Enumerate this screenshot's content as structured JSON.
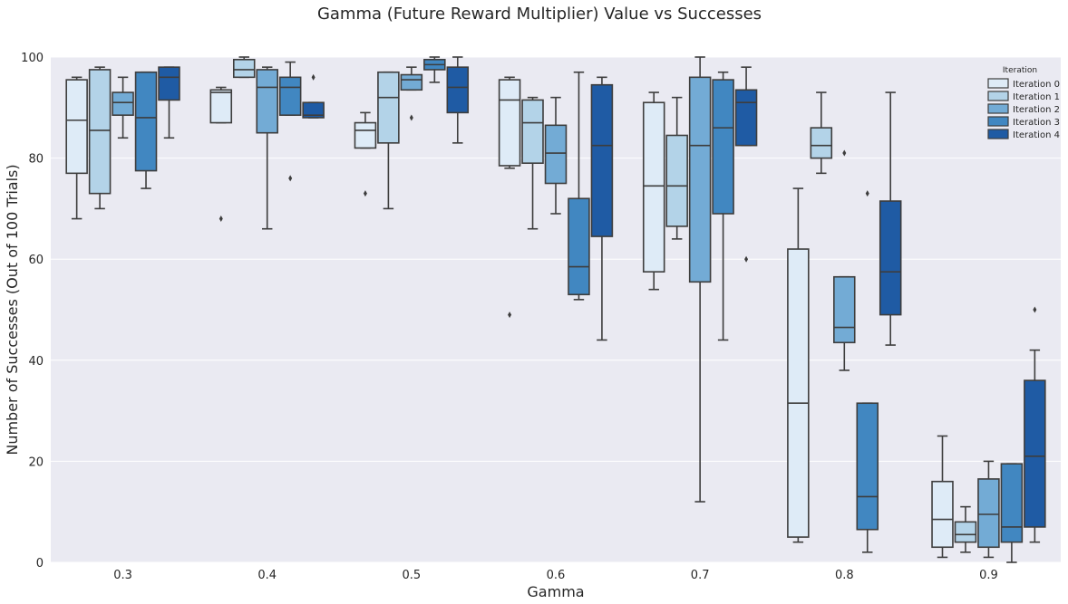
{
  "chart_data": {
    "type": "box",
    "title": "Gamma (Future Reward Multiplier) Value vs Successes",
    "xlabel": "Gamma",
    "ylabel": "Number of Successes (Out of 100 Trials)",
    "ylim": [
      0,
      100
    ],
    "yticks": [
      0,
      20,
      40,
      60,
      80,
      100
    ],
    "categories": [
      "0.3",
      "0.4",
      "0.5",
      "0.6",
      "0.7",
      "0.8",
      "0.9"
    ],
    "legend": {
      "title": "Iteration",
      "position": "top-right",
      "entries": [
        "Iteration 0",
        "Iteration 1",
        "Iteration 2",
        "Iteration 3",
        "Iteration 4"
      ]
    },
    "colors": [
      "#deebf7",
      "#b3d3e8",
      "#73abd5",
      "#4187c1",
      "#1f5ba4"
    ],
    "series": [
      {
        "name": "Iteration 0",
        "boxes": [
          {
            "wlo": 68,
            "q1": 77,
            "med": 87.5,
            "q3": 95.5,
            "whi": 96,
            "fliers": []
          },
          {
            "wlo": 87,
            "q1": 87,
            "med": 93,
            "q3": 93.5,
            "whi": 94,
            "fliers": [
              68
            ]
          },
          {
            "wlo": 82,
            "q1": 82,
            "med": 85.5,
            "q3": 87,
            "whi": 89,
            "fliers": [
              73
            ]
          },
          {
            "wlo": 78,
            "q1": 78.5,
            "med": 91.5,
            "q3": 95.5,
            "whi": 96,
            "fliers": [
              49
            ]
          },
          {
            "wlo": 54,
            "q1": 57.5,
            "med": 74.5,
            "q3": 91,
            "whi": 93,
            "fliers": []
          },
          {
            "wlo": 4,
            "q1": 5,
            "med": 31.5,
            "q3": 62,
            "whi": 74,
            "fliers": []
          },
          {
            "wlo": 1,
            "q1": 3,
            "med": 8.5,
            "q3": 16,
            "whi": 25,
            "fliers": []
          }
        ]
      },
      {
        "name": "Iteration 1",
        "boxes": [
          {
            "wlo": 70,
            "q1": 73,
            "med": 85.5,
            "q3": 97.5,
            "whi": 98,
            "fliers": []
          },
          {
            "wlo": 96,
            "q1": 96,
            "med": 97.5,
            "q3": 99.5,
            "whi": 100,
            "fliers": []
          },
          {
            "wlo": 70,
            "q1": 83,
            "med": 92,
            "q3": 97,
            "whi": 97,
            "fliers": []
          },
          {
            "wlo": 66,
            "q1": 79,
            "med": 87,
            "q3": 91.5,
            "whi": 92,
            "fliers": []
          },
          {
            "wlo": 64,
            "q1": 66.5,
            "med": 74.5,
            "q3": 84.5,
            "whi": 92,
            "fliers": []
          },
          {
            "wlo": 77,
            "q1": 80,
            "med": 82.5,
            "q3": 86,
            "whi": 93,
            "fliers": []
          },
          {
            "wlo": 2,
            "q1": 4,
            "med": 5.5,
            "q3": 8,
            "whi": 11,
            "fliers": []
          }
        ]
      },
      {
        "name": "Iteration 2",
        "boxes": [
          {
            "wlo": 84,
            "q1": 88.5,
            "med": 91,
            "q3": 93,
            "whi": 96,
            "fliers": []
          },
          {
            "wlo": 66,
            "q1": 85,
            "med": 94,
            "q3": 97.5,
            "whi": 98,
            "fliers": []
          },
          {
            "wlo": 93.5,
            "q1": 93.5,
            "med": 95.5,
            "q3": 96.5,
            "whi": 98,
            "fliers": [
              88
            ]
          },
          {
            "wlo": 69,
            "q1": 75,
            "med": 81,
            "q3": 86.5,
            "whi": 92,
            "fliers": []
          },
          {
            "wlo": 12,
            "q1": 55.5,
            "med": 82.5,
            "q3": 96,
            "whi": 100,
            "fliers": []
          },
          {
            "wlo": 38,
            "q1": 43.5,
            "med": 46.5,
            "q3": 56.5,
            "whi": 56.5,
            "fliers": [
              81
            ]
          },
          {
            "wlo": 1,
            "q1": 3,
            "med": 9.5,
            "q3": 16.5,
            "whi": 20,
            "fliers": []
          }
        ]
      },
      {
        "name": "Iteration 3",
        "boxes": [
          {
            "wlo": 74,
            "q1": 77.5,
            "med": 88,
            "q3": 97,
            "whi": 97,
            "fliers": []
          },
          {
            "wlo": 88.5,
            "q1": 88.5,
            "med": 94,
            "q3": 96,
            "whi": 99,
            "fliers": [
              76
            ]
          },
          {
            "wlo": 95,
            "q1": 97.5,
            "med": 98.5,
            "q3": 99.5,
            "whi": 100,
            "fliers": []
          },
          {
            "wlo": 52,
            "q1": 53,
            "med": 58.5,
            "q3": 72,
            "whi": 97,
            "fliers": []
          },
          {
            "wlo": 44,
            "q1": 69,
            "med": 86,
            "q3": 95.5,
            "whi": 97,
            "fliers": []
          },
          {
            "wlo": 2,
            "q1": 6.5,
            "med": 13,
            "q3": 31.5,
            "whi": 31.5,
            "fliers": [
              73
            ]
          },
          {
            "wlo": 0,
            "q1": 4,
            "med": 7,
            "q3": 19.5,
            "whi": 19.5,
            "fliers": []
          }
        ]
      },
      {
        "name": "Iteration 4",
        "boxes": [
          {
            "wlo": 84,
            "q1": 91.5,
            "med": 96,
            "q3": 98,
            "whi": 98,
            "fliers": []
          },
          {
            "wlo": 88,
            "q1": 88,
            "med": 88.5,
            "q3": 91,
            "whi": 91,
            "fliers": [
              96
            ]
          },
          {
            "wlo": 83,
            "q1": 89,
            "med": 94,
            "q3": 98,
            "whi": 100,
            "fliers": []
          },
          {
            "wlo": 44,
            "q1": 64.5,
            "med": 82.5,
            "q3": 94.5,
            "whi": 96,
            "fliers": []
          },
          {
            "wlo": 82.5,
            "q1": 82.5,
            "med": 91,
            "q3": 93.5,
            "whi": 98,
            "fliers": [
              60
            ]
          },
          {
            "wlo": 43,
            "q1": 49,
            "med": 57.5,
            "q3": 71.5,
            "whi": 93,
            "fliers": []
          },
          {
            "wlo": 4,
            "q1": 7,
            "med": 21,
            "q3": 36,
            "whi": 42,
            "fliers": [
              50
            ]
          }
        ]
      }
    ]
  }
}
